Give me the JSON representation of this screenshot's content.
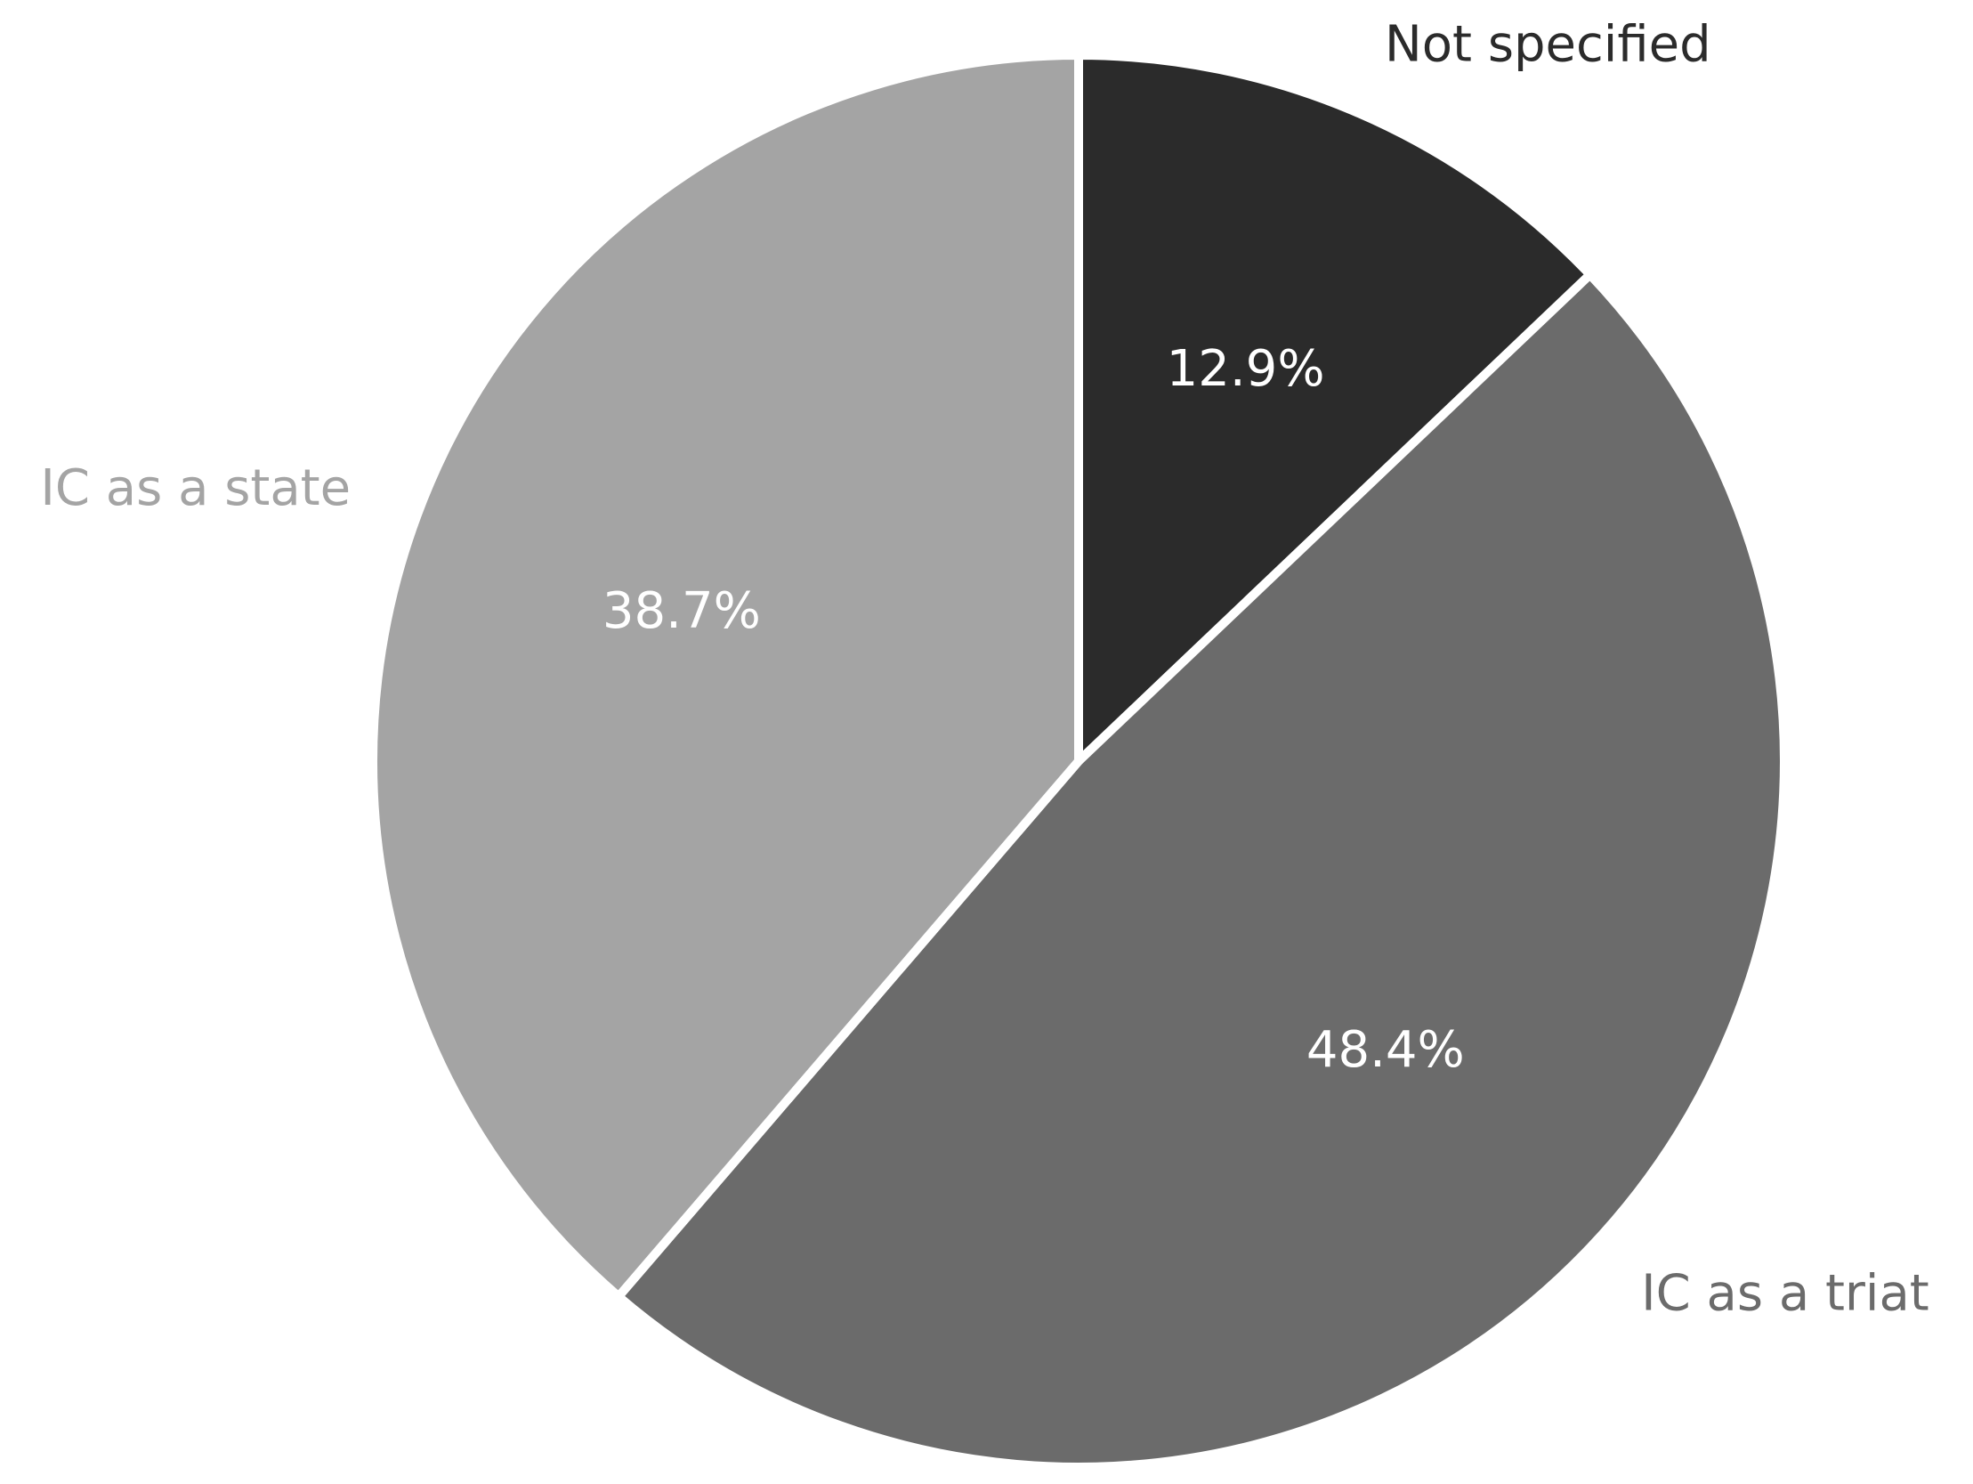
{
  "chart_data": {
    "type": "pie",
    "categories": [
      "Not specified",
      "IC as a triat",
      "IC as a state"
    ],
    "values": [
      12.9,
      48.4,
      38.7
    ],
    "value_labels": [
      "12.9%",
      "48.4%",
      "38.7%"
    ],
    "colors": [
      "#2b2b2b",
      "#6b6b6b",
      "#a4a4a4"
    ]
  }
}
